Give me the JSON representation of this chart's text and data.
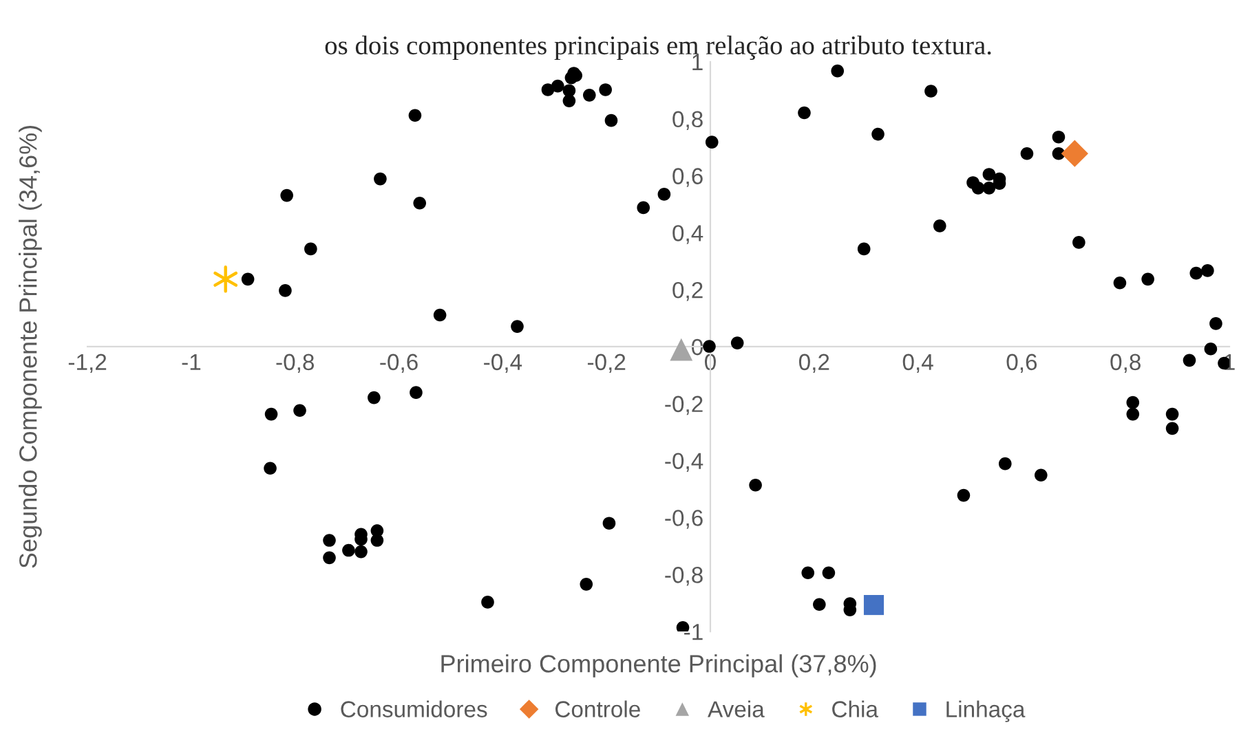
{
  "chart_data": {
    "type": "scatter",
    "title": "os dois componentes principais em relação ao atributo textura.",
    "xlabel": "Primeiro Componente Principal (37,8%)",
    "ylabel": "Segundo Componente Principal (34,6%)",
    "xlim": [
      -1.2,
      1
    ],
    "xticks": [
      {
        "value": -1.2,
        "label": "-1,2"
      },
      -1,
      {
        "value": -0.8,
        "label": "-0,8"
      },
      {
        "value": -0.6,
        "label": "-0,6"
      },
      {
        "value": -0.4,
        "label": "-0,4"
      },
      {
        "value": -0.2,
        "label": "-0,2"
      },
      0,
      {
        "value": 0.2,
        "label": "0,2"
      },
      {
        "value": 0.4,
        "label": "0,4"
      },
      {
        "value": 0.6,
        "label": "0,6"
      },
      {
        "value": 0.8,
        "label": "0,8"
      },
      1
    ],
    "ylim": [
      -1,
      1
    ],
    "yticks": [
      -1,
      {
        "value": -0.8,
        "label": "-0,8"
      },
      {
        "value": -0.6,
        "label": "-0,6"
      },
      {
        "value": -0.4,
        "label": "-0,4"
      },
      {
        "value": -0.2,
        "label": "-0,2"
      },
      0,
      {
        "value": 0.2,
        "label": "0,2"
      },
      {
        "value": 0.4,
        "label": "0,4"
      },
      {
        "value": 0.6,
        "label": "0,6"
      },
      {
        "value": 0.8,
        "label": "0,8"
      },
      1
    ],
    "grid": false,
    "legend": "bottom",
    "series": [
      {
        "name": "Consumidores",
        "color": "#000000",
        "marker": "circle",
        "x": [
          -0.313,
          -0.294,
          -0.272,
          -0.272,
          -0.268,
          -0.259,
          -0.263,
          -0.233,
          -0.202,
          -0.191,
          -0.569,
          0.003,
          -0.636,
          -0.816,
          -0.56,
          -0.129,
          -0.089,
          -0.77,
          -0.891,
          -0.819,
          -0.521,
          -0.372,
          -0.002,
          0.245,
          0.181,
          0.425,
          0.323,
          0.671,
          0.61,
          0.671,
          0.506,
          0.516,
          0.537,
          0.537,
          0.557,
          0.557,
          0.442,
          0.296,
          0.71,
          0.789,
          0.843,
          0.936,
          0.958,
          0.974,
          0.964,
          0.923,
          0.99,
          0.052,
          -0.846,
          -0.791,
          -0.648,
          -0.567,
          -0.848,
          -0.195,
          -0.734,
          -0.734,
          -0.697,
          -0.673,
          -0.673,
          -0.673,
          -0.642,
          -0.642,
          -0.239,
          -0.429,
          -0.053,
          0.087,
          0.488,
          0.568,
          0.637,
          0.814,
          0.814,
          0.89,
          0.89,
          0.188,
          0.228,
          0.21,
          0.269,
          0.269
        ],
        "values": [
          0.902,
          0.915,
          0.899,
          0.863,
          0.944,
          0.952,
          0.96,
          0.883,
          0.902,
          0.794,
          0.812,
          0.718,
          0.589,
          0.531,
          0.504,
          0.488,
          0.535,
          0.343,
          0.237,
          0.197,
          0.111,
          0.071,
          0.001,
          0.968,
          0.821,
          0.897,
          0.746,
          0.736,
          0.678,
          0.678,
          0.576,
          0.557,
          0.605,
          0.557,
          0.589,
          0.573,
          0.424,
          0.343,
          0.366,
          0.224,
          0.237,
          0.258,
          0.267,
          0.081,
          -0.008,
          -0.048,
          -0.058,
          0.013,
          -0.237,
          -0.224,
          -0.179,
          -0.161,
          -0.427,
          -0.62,
          -0.68,
          -0.741,
          -0.715,
          -0.659,
          -0.676,
          -0.72,
          -0.646,
          -0.68,
          -0.834,
          -0.897,
          -0.986,
          -0.486,
          -0.522,
          -0.411,
          -0.451,
          -0.196,
          -0.237,
          -0.237,
          -0.287,
          -0.794,
          -0.794,
          -0.905,
          -0.902,
          -0.924
        ]
      },
      {
        "name": "Controle",
        "color": "#ED7D31",
        "marker": "diamond",
        "x": [
          0.702
        ],
        "values": [
          0.678
        ]
      },
      {
        "name": "Aveia",
        "color": "#A5A5A5",
        "marker": "triangle",
        "x": [
          -0.056
        ],
        "values": [
          -0.01
        ]
      },
      {
        "name": "Chia",
        "color": "#FFC000",
        "marker": "cross",
        "x": [
          -0.934
        ],
        "values": [
          0.237
        ]
      },
      {
        "name": "Linhaça",
        "color": "#4472C4",
        "marker": "square",
        "x": [
          0.315
        ],
        "values": [
          -0.907
        ]
      }
    ]
  }
}
